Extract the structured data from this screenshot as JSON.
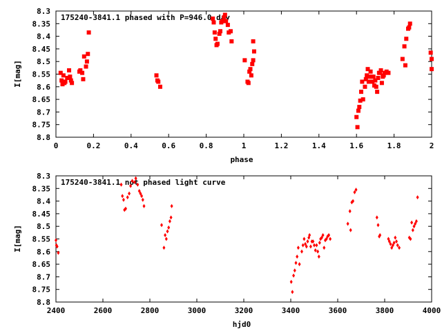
{
  "chart_data": [
    {
      "type": "scatter",
      "title": "175240-3841.1 phased with P=946.0 day",
      "xlabel": "phase",
      "ylabel": "I[mag]",
      "xlim": [
        0,
        2
      ],
      "ylim": [
        8.3,
        8.8
      ],
      "y_inverted": true,
      "grid": false,
      "x_ticks": [
        "0",
        "0.2",
        "0.4",
        "0.6",
        "0.8",
        "1",
        "1.2",
        "1.4",
        "1.6",
        "1.8",
        "2"
      ],
      "y_ticks": [
        "8.3",
        "8.35",
        "8.4",
        "8.45",
        "8.5",
        "8.55",
        "8.6",
        "8.65",
        "8.7",
        "8.75",
        "8.8"
      ],
      "marker_color": "#ff0000",
      "points": [
        [
          0.025,
          8.545
        ],
        [
          0.03,
          8.575
        ],
        [
          0.035,
          8.59
        ],
        [
          0.04,
          8.555
        ],
        [
          0.045,
          8.585
        ],
        [
          0.05,
          8.58
        ],
        [
          0.06,
          8.565
        ],
        [
          0.07,
          8.535
        ],
        [
          0.075,
          8.56
        ],
        [
          0.08,
          8.575
        ],
        [
          0.085,
          8.585
        ],
        [
          0.125,
          8.54
        ],
        [
          0.13,
          8.535
        ],
        [
          0.14,
          8.545
        ],
        [
          0.145,
          8.57
        ],
        [
          0.15,
          8.48
        ],
        [
          0.16,
          8.52
        ],
        [
          0.165,
          8.5
        ],
        [
          0.17,
          8.47
        ],
        [
          0.175,
          8.385
        ],
        [
          0.535,
          8.555
        ],
        [
          0.54,
          8.575
        ],
        [
          0.545,
          8.58
        ],
        [
          0.555,
          8.6
        ],
        [
          0.835,
          8.33
        ],
        [
          0.84,
          8.345
        ],
        [
          0.845,
          8.385
        ],
        [
          0.85,
          8.41
        ],
        [
          0.855,
          8.435
        ],
        [
          0.86,
          8.43
        ],
        [
          0.87,
          8.39
        ],
        [
          0.875,
          8.38
        ],
        [
          0.88,
          8.345
        ],
        [
          0.885,
          8.34
        ],
        [
          0.895,
          8.325
        ],
        [
          0.9,
          8.315
        ],
        [
          0.905,
          8.34
        ],
        [
          0.915,
          8.355
        ],
        [
          0.92,
          8.385
        ],
        [
          0.93,
          8.38
        ],
        [
          0.935,
          8.42
        ],
        [
          1.005,
          8.495
        ],
        [
          1.02,
          8.58
        ],
        [
          1.025,
          8.585
        ],
        [
          1.03,
          8.54
        ],
        [
          1.035,
          8.53
        ],
        [
          1.04,
          8.555
        ],
        [
          1.045,
          8.51
        ],
        [
          1.05,
          8.495
        ],
        [
          1.055,
          8.46
        ],
        [
          1.05,
          8.42
        ],
        [
          1.6,
          8.72
        ],
        [
          1.605,
          8.76
        ],
        [
          1.61,
          8.695
        ],
        [
          1.615,
          8.68
        ],
        [
          1.62,
          8.655
        ],
        [
          1.625,
          8.62
        ],
        [
          1.63,
          8.58
        ],
        [
          1.635,
          8.65
        ],
        [
          1.645,
          8.6
        ],
        [
          1.65,
          8.57
        ],
        [
          1.655,
          8.555
        ],
        [
          1.66,
          8.53
        ],
        [
          1.665,
          8.58
        ],
        [
          1.67,
          8.56
        ],
        [
          1.675,
          8.54
        ],
        [
          1.68,
          8.56
        ],
        [
          1.685,
          8.58
        ],
        [
          1.69,
          8.56
        ],
        [
          1.695,
          8.595
        ],
        [
          1.7,
          8.575
        ],
        [
          1.705,
          8.6
        ],
        [
          1.71,
          8.62
        ],
        [
          1.715,
          8.565
        ],
        [
          1.72,
          8.545
        ],
        [
          1.725,
          8.545
        ],
        [
          1.73,
          8.535
        ],
        [
          1.735,
          8.585
        ],
        [
          1.74,
          8.56
        ],
        [
          1.745,
          8.555
        ],
        [
          1.75,
          8.545
        ],
        [
          1.76,
          8.54
        ],
        [
          1.77,
          8.545
        ],
        [
          1.845,
          8.49
        ],
        [
          1.855,
          8.44
        ],
        [
          1.86,
          8.515
        ],
        [
          1.865,
          8.41
        ],
        [
          1.875,
          8.37
        ],
        [
          1.88,
          8.365
        ],
        [
          1.885,
          8.35
        ],
        [
          1.995,
          8.465
        ],
        [
          2.0,
          8.49
        ],
        [
          2.0,
          8.53
        ]
      ]
    },
    {
      "type": "scatter",
      "title": "175240-3841.1 not phased light curve",
      "xlabel": "hjd0",
      "ylabel": "I[mag]",
      "xlim": [
        2400,
        4000
      ],
      "ylim": [
        8.3,
        8.8
      ],
      "y_inverted": true,
      "grid": false,
      "x_ticks": [
        "2400",
        "2600",
        "2800",
        "3000",
        "3200",
        "3400",
        "3600",
        "3800",
        "4000"
      ],
      "y_ticks": [
        "8.3",
        "8.35",
        "8.4",
        "8.45",
        "8.5",
        "8.55",
        "8.6",
        "8.65",
        "8.7",
        "8.75",
        "8.8"
      ],
      "marker_color": "#ff0000",
      "points": [
        [
          2400,
          8.555
        ],
        [
          2402,
          8.575
        ],
        [
          2405,
          8.58
        ],
        [
          2410,
          8.605
        ],
        [
          2678,
          8.335
        ],
        [
          2683,
          8.38
        ],
        [
          2688,
          8.395
        ],
        [
          2692,
          8.435
        ],
        [
          2697,
          8.43
        ],
        [
          2705,
          8.385
        ],
        [
          2712,
          8.37
        ],
        [
          2718,
          8.34
        ],
        [
          2725,
          8.32
        ],
        [
          2735,
          8.325
        ],
        [
          2740,
          8.31
        ],
        [
          2748,
          8.335
        ],
        [
          2755,
          8.36
        ],
        [
          2760,
          8.37
        ],
        [
          2765,
          8.38
        ],
        [
          2770,
          8.395
        ],
        [
          2775,
          8.42
        ],
        [
          2850,
          8.495
        ],
        [
          2860,
          8.585
        ],
        [
          2865,
          8.535
        ],
        [
          2870,
          8.55
        ],
        [
          2875,
          8.52
        ],
        [
          2880,
          8.505
        ],
        [
          2885,
          8.48
        ],
        [
          2890,
          8.465
        ],
        [
          2893,
          8.42
        ],
        [
          3402,
          8.72
        ],
        [
          3407,
          8.76
        ],
        [
          3412,
          8.695
        ],
        [
          3417,
          8.675
        ],
        [
          3422,
          8.645
        ],
        [
          3427,
          8.62
        ],
        [
          3432,
          8.585
        ],
        [
          3437,
          8.65
        ],
        [
          3447,
          8.6
        ],
        [
          3452,
          8.575
        ],
        [
          3457,
          8.55
        ],
        [
          3462,
          8.57
        ],
        [
          3467,
          8.58
        ],
        [
          3472,
          8.56
        ],
        [
          3477,
          8.545
        ],
        [
          3480,
          8.535
        ],
        [
          3485,
          8.58
        ],
        [
          3490,
          8.56
        ],
        [
          3495,
          8.56
        ],
        [
          3500,
          8.575
        ],
        [
          3505,
          8.595
        ],
        [
          3510,
          8.575
        ],
        [
          3515,
          8.6
        ],
        [
          3520,
          8.62
        ],
        [
          3523,
          8.565
        ],
        [
          3527,
          8.55
        ],
        [
          3532,
          8.545
        ],
        [
          3537,
          8.535
        ],
        [
          3542,
          8.585
        ],
        [
          3547,
          8.555
        ],
        [
          3552,
          8.55
        ],
        [
          3557,
          8.54
        ],
        [
          3562,
          8.535
        ],
        [
          3568,
          8.55
        ],
        [
          3643,
          8.49
        ],
        [
          3652,
          8.44
        ],
        [
          3655,
          8.515
        ],
        [
          3660,
          8.405
        ],
        [
          3665,
          8.4
        ],
        [
          3672,
          8.365
        ],
        [
          3678,
          8.355
        ],
        [
          3767,
          8.465
        ],
        [
          3772,
          8.495
        ],
        [
          3777,
          8.54
        ],
        [
          3780,
          8.535
        ],
        [
          3816,
          8.55
        ],
        [
          3820,
          8.56
        ],
        [
          3825,
          8.57
        ],
        [
          3830,
          8.585
        ],
        [
          3835,
          8.575
        ],
        [
          3840,
          8.565
        ],
        [
          3845,
          8.545
        ],
        [
          3850,
          8.56
        ],
        [
          3855,
          8.575
        ],
        [
          3862,
          8.585
        ],
        [
          3905,
          8.545
        ],
        [
          3910,
          8.55
        ],
        [
          3915,
          8.485
        ],
        [
          3920,
          8.515
        ],
        [
          3925,
          8.5
        ],
        [
          3930,
          8.49
        ],
        [
          3935,
          8.48
        ],
        [
          3940,
          8.385
        ]
      ]
    }
  ]
}
